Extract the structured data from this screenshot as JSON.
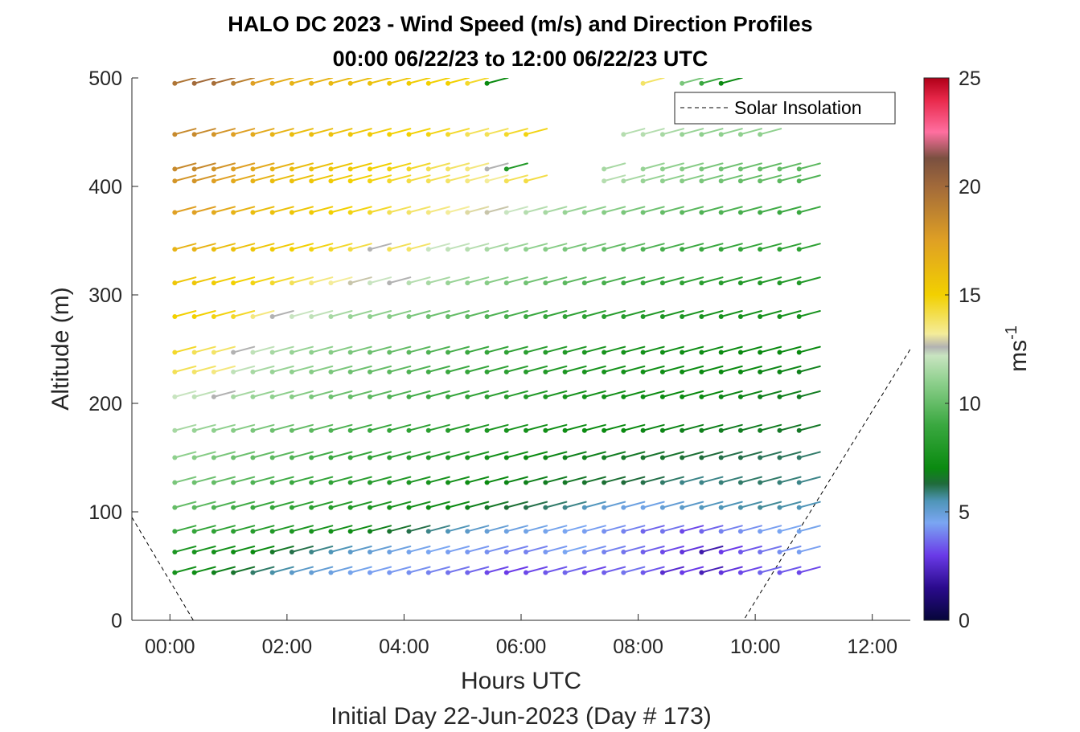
{
  "chart_data": {
    "type": "wind-barb-profile",
    "title": "HALO DC 2023 - Wind Speed (m/s) and Direction Profiles",
    "subtitle": "00:00 06/22/23 to 12:00 06/22/23  UTC",
    "xlabel": "Hours UTC",
    "xlabel2": "Initial Day 22-Jun-2023 (Day # 173)",
    "ylabel": "Altitude (m)",
    "xlim_hours": [
      -0.65,
      12.65
    ],
    "ylim": [
      0,
      500
    ],
    "x_ticks": [
      {
        "hour": 0,
        "label": "00:00"
      },
      {
        "hour": 2,
        "label": "02:00"
      },
      {
        "hour": 4,
        "label": "04:00"
      },
      {
        "hour": 6,
        "label": "06:00"
      },
      {
        "hour": 8,
        "label": "08:00"
      },
      {
        "hour": 10,
        "label": "10:00"
      },
      {
        "hour": 12,
        "label": "12:00"
      }
    ],
    "y_ticks": [
      {
        "value": 0,
        "label": "0"
      },
      {
        "value": 100,
        "label": "100"
      },
      {
        "value": 200,
        "label": "200"
      },
      {
        "value": 300,
        "label": "300"
      },
      {
        "value": 400,
        "label": "400"
      },
      {
        "value": 500,
        "label": "500"
      }
    ],
    "colorbar": {
      "label": "ms",
      "label_exponent": "-1",
      "range": [
        0,
        25
      ],
      "ticks": [
        {
          "value": 0,
          "label": "0"
        },
        {
          "value": 5,
          "label": "5"
        },
        {
          "value": 10,
          "label": "10"
        },
        {
          "value": 15,
          "label": "15"
        },
        {
          "value": 20,
          "label": "20"
        },
        {
          "value": 25,
          "label": "25"
        }
      ],
      "stops": [
        {
          "v": 0,
          "c": "#06063a"
        },
        {
          "v": 1.5,
          "c": "#2a0a8c"
        },
        {
          "v": 3,
          "c": "#6a3ae8"
        },
        {
          "v": 4.5,
          "c": "#7aa6f2"
        },
        {
          "v": 5.5,
          "c": "#4f95b8"
        },
        {
          "v": 6.3,
          "c": "#1f6b3a"
        },
        {
          "v": 7,
          "c": "#0a8a10"
        },
        {
          "v": 9,
          "c": "#3aa840"
        },
        {
          "v": 11,
          "c": "#8fd08e"
        },
        {
          "v": 12.2,
          "c": "#c8e4c0"
        },
        {
          "v": 12.6,
          "c": "#b2b2b2"
        },
        {
          "v": 13.2,
          "c": "#f4ec9a"
        },
        {
          "v": 15,
          "c": "#f2d000"
        },
        {
          "v": 17.5,
          "c": "#dfa024"
        },
        {
          "v": 20,
          "c": "#a26a3a"
        },
        {
          "v": 21.3,
          "c": "#7a5040"
        },
        {
          "v": 22.5,
          "c": "#ff6fa0"
        },
        {
          "v": 24,
          "c": "#e8284a"
        },
        {
          "v": 25,
          "c": "#b00018"
        }
      ]
    },
    "solar_insolation": {
      "name": "Solar Insolation",
      "points": [
        [
          -0.65,
          95
        ],
        [
          0.4,
          0
        ],
        [
          9.8,
          0
        ],
        [
          12.65,
          250
        ]
      ]
    },
    "wind_times_hours": [
      0.083,
      0.417,
      0.75,
      1.083,
      1.417,
      1.75,
      2.083,
      2.417,
      2.75,
      3.083,
      3.417,
      3.75,
      4.083,
      4.417,
      4.75,
      5.083,
      5.417,
      5.75,
      6.083,
      6.417,
      6.75,
      7.083,
      7.417,
      7.75,
      8.083,
      8.417,
      8.75,
      9.083,
      9.417,
      9.75,
      10.083,
      10.417,
      10.75
    ],
    "wind_levels": [
      {
        "altitude_m": 495,
        "direction_deg": 255,
        "speeds": [
          19.5,
          20,
          19.8,
          19,
          17.5,
          16.8,
          16.5,
          16.5,
          16.2,
          16,
          15.8,
          15.5,
          15.2,
          15,
          15,
          14.5,
          7,
          null,
          null,
          null,
          null,
          null,
          null,
          null,
          13.8,
          null,
          10.5,
          9,
          7,
          null,
          null,
          null,
          null
        ]
      },
      {
        "altitude_m": 448,
        "direction_deg": 255,
        "speeds": [
          18.5,
          18.5,
          18,
          17.5,
          17,
          16.5,
          16,
          16,
          15.8,
          15.5,
          15.3,
          15,
          15,
          14.8,
          14.5,
          14,
          14,
          14.5,
          14.8,
          null,
          null,
          null,
          null,
          11.8,
          11.8,
          11.5,
          11.2,
          11,
          11,
          11,
          11,
          null,
          null
        ]
      },
      {
        "altitude_m": 416,
        "direction_deg": 255,
        "speeds": [
          18.5,
          18.5,
          18,
          17.5,
          17,
          16.5,
          16,
          15.8,
          15.5,
          15.3,
          15,
          14.8,
          14.5,
          14,
          13.8,
          13.5,
          12.6,
          8,
          null,
          null,
          null,
          null,
          11.5,
          null,
          11.2,
          11,
          10.8,
          10.5,
          10.3,
          10.2,
          10,
          10,
          9.8
        ]
      },
      {
        "altitude_m": 405,
        "direction_deg": 255,
        "speeds": [
          18,
          18,
          17.5,
          17,
          16.5,
          16,
          15.8,
          15.5,
          15.3,
          15,
          14.8,
          14.5,
          14.2,
          14,
          13.8,
          13.5,
          13.2,
          14,
          14.2,
          null,
          null,
          null,
          11.8,
          11.5,
          11.2,
          11,
          10.8,
          10.5,
          10.3,
          10,
          10,
          9.8,
          9.5
        ]
      },
      {
        "altitude_m": 376,
        "direction_deg": 255,
        "speeds": [
          17.5,
          17.5,
          17,
          16.5,
          16,
          15.8,
          15.5,
          15.3,
          15,
          14.8,
          14.5,
          14,
          13.8,
          13.5,
          13.2,
          13,
          12.8,
          12.2,
          11.8,
          11.5,
          11.2,
          11,
          10.8,
          10.5,
          10.3,
          10,
          9.8,
          9.5,
          9.5,
          9.3,
          9.2,
          9,
          9
        ]
      },
      {
        "altitude_m": 342,
        "direction_deg": 255,
        "speeds": [
          16.5,
          16.5,
          16,
          15.8,
          15.5,
          15.3,
          15,
          14.8,
          14.5,
          14.2,
          12.6,
          14,
          13.8,
          12.2,
          12,
          11.8,
          11.5,
          11.2,
          11,
          10.8,
          10.5,
          10.3,
          10,
          9.8,
          9.5,
          9.3,
          9,
          9,
          8.8,
          8.8,
          8.6,
          8.5,
          8.5
        ]
      },
      {
        "altitude_m": 311,
        "direction_deg": 255,
        "speeds": [
          15.5,
          15.5,
          15.2,
          15,
          14.8,
          14.5,
          14,
          13.5,
          13.2,
          12.8,
          12.2,
          12.6,
          11.8,
          11.5,
          11.2,
          11,
          10.8,
          10.5,
          10.3,
          10,
          9.8,
          9.5,
          9.3,
          9,
          8.8,
          8.6,
          8.5,
          8.3,
          8.2,
          8,
          8,
          8,
          8
        ]
      },
      {
        "altitude_m": 280,
        "direction_deg": 255,
        "speeds": [
          15,
          15,
          14.8,
          14.5,
          13.5,
          12.6,
          12.2,
          12,
          11.5,
          11.2,
          11,
          10.8,
          10.5,
          10.2,
          10,
          9.8,
          9.5,
          9.3,
          9,
          8.8,
          8.6,
          8.5,
          8.3,
          8.2,
          8,
          7.8,
          7.8,
          7.6,
          7.5,
          7.5,
          7.5,
          7.5,
          7.5
        ]
      },
      {
        "altitude_m": 247,
        "direction_deg": 255,
        "speeds": [
          14.5,
          14,
          13.8,
          12.6,
          12,
          11.5,
          11.2,
          11,
          10.8,
          10.5,
          10.2,
          10,
          9.8,
          9.5,
          9.3,
          9,
          8.8,
          8.6,
          8.4,
          8.2,
          8,
          7.8,
          7.6,
          7.5,
          7.4,
          7.3,
          7.2,
          7.2,
          7.1,
          7,
          7,
          7,
          7
        ]
      },
      {
        "altitude_m": 229,
        "direction_deg": 255,
        "speeds": [
          14,
          13.8,
          13.5,
          12,
          11.5,
          11.2,
          11,
          10.8,
          10.5,
          10.2,
          10,
          9.8,
          9.5,
          9.2,
          9,
          8.8,
          8.6,
          8.4,
          8.2,
          8,
          7.8,
          7.6,
          7.5,
          7.4,
          7.3,
          7.2,
          7.1,
          7,
          7,
          7,
          6.9,
          6.9,
          6.8
        ]
      },
      {
        "altitude_m": 206,
        "direction_deg": 255,
        "speeds": [
          12.2,
          12,
          12.6,
          11.5,
          11.2,
          11,
          10.8,
          10.5,
          10.2,
          10,
          9.8,
          9.5,
          9.2,
          9,
          8.8,
          8.6,
          8.4,
          8.2,
          8,
          7.8,
          7.6,
          7.5,
          7.4,
          7.3,
          7.2,
          7.1,
          7,
          7,
          6.9,
          6.9,
          6.8,
          6.8,
          6.7
        ]
      },
      {
        "altitude_m": 175,
        "direction_deg": 255,
        "speeds": [
          11.5,
          11.2,
          11,
          10.8,
          10.5,
          10.2,
          10,
          9.8,
          9.5,
          9.2,
          9,
          8.8,
          8.6,
          8.4,
          8.2,
          8,
          7.8,
          7.6,
          7.4,
          7.3,
          7.2,
          7.1,
          7,
          7,
          6.9,
          6.9,
          6.8,
          6.8,
          6.7,
          6.7,
          6.7,
          6.6,
          6.6
        ]
      },
      {
        "altitude_m": 150,
        "direction_deg": 255,
        "speeds": [
          11,
          10.8,
          10.5,
          10.2,
          10,
          9.8,
          9.5,
          9.2,
          9,
          8.8,
          8.6,
          8.4,
          8.2,
          8,
          7.8,
          7.6,
          7.4,
          7.2,
          7,
          6.9,
          6.8,
          6.8,
          6.7,
          6.6,
          6.5,
          6.5,
          6.4,
          6.3,
          6.2,
          6.2,
          6.1,
          6.1,
          6
        ]
      },
      {
        "altitude_m": 127,
        "direction_deg": 255,
        "speeds": [
          10.5,
          10.2,
          10,
          9.8,
          9.5,
          9.2,
          9,
          8.8,
          8.6,
          8.4,
          8.2,
          8,
          7.8,
          7.6,
          7.4,
          7.2,
          7,
          6.9,
          6.8,
          6.7,
          6.6,
          6.5,
          6.4,
          6.3,
          6.2,
          6,
          5.8,
          5.8,
          5.9,
          6,
          6,
          5.9,
          5.8
        ]
      },
      {
        "altitude_m": 104,
        "direction_deg": 255,
        "speeds": [
          10,
          9.8,
          9.5,
          9.2,
          9,
          8.8,
          8.6,
          8.4,
          8.2,
          8,
          7.8,
          7.6,
          7.4,
          7.2,
          7,
          6.8,
          6.6,
          6.4,
          6.2,
          6,
          5.8,
          5.4,
          5,
          4.8,
          4.7,
          5,
          5.2,
          5.4,
          5.5,
          5.6,
          5.7,
          5.6,
          5.5
        ]
      },
      {
        "altitude_m": 82,
        "direction_deg": 255,
        "speeds": [
          9,
          8.8,
          8.6,
          8.4,
          8.2,
          8,
          7.8,
          7.6,
          7.4,
          7.2,
          6.8,
          6.5,
          6.2,
          5.8,
          5.5,
          5.2,
          5,
          4.8,
          4.7,
          4.6,
          4.5,
          4.4,
          4.2,
          4,
          3.6,
          3.8,
          3.2,
          3.6,
          4,
          4.2,
          4.4,
          4.5,
          4.6
        ]
      },
      {
        "altitude_m": 63,
        "direction_deg": 255,
        "speeds": [
          7.8,
          7.6,
          7.4,
          7.2,
          7,
          6.6,
          6.2,
          5.8,
          5.5,
          5.2,
          5,
          4.8,
          4.6,
          4.5,
          4.4,
          4.3,
          4.2,
          4,
          4,
          4.3,
          4.5,
          4.2,
          4,
          3.8,
          3.5,
          3.2,
          2.8,
          2,
          3,
          3.4,
          3.8,
          4.2,
          4.4
        ]
      },
      {
        "altitude_m": 44,
        "direction_deg": 255,
        "speeds": [
          7.5,
          7.2,
          6.8,
          6.5,
          6,
          5.6,
          5.2,
          5,
          4.8,
          4.6,
          4.4,
          4.3,
          4.2,
          4,
          3.8,
          3.6,
          3.2,
          3,
          3.2,
          3.4,
          3.6,
          3.2,
          3.5,
          3.8,
          3.4,
          2.6,
          3,
          2.2,
          2.8,
          3.2,
          3.6,
          3.4,
          3.2
        ]
      }
    ]
  }
}
